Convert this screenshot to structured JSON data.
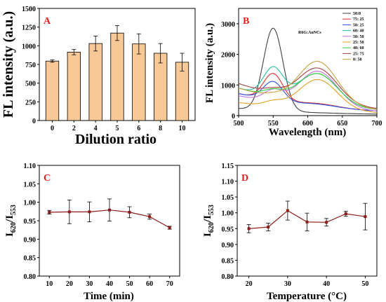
{
  "chart_data": [
    {
      "panel": "A",
      "type": "bar",
      "xlabel": "Dilution ratio",
      "ylabel": "FL intensity (a.u.)",
      "categories": [
        "0",
        "2",
        "4",
        "5",
        "6",
        "8",
        "10"
      ],
      "values": [
        795,
        915,
        1030,
        1170,
        1025,
        900,
        780
      ],
      "errors": [
        15,
        35,
        100,
        100,
        135,
        130,
        120
      ],
      "ylim": [
        0,
        1500
      ],
      "yticks": [
        "0",
        "250",
        "500",
        "750",
        "1000",
        "1250",
        "1500"
      ],
      "bar_color": "#f9c897"
    },
    {
      "panel": "B",
      "type": "line",
      "xlabel": "Wavelength (nm)",
      "ylabel": "FL intensity (a.u.)",
      "xlim": [
        500,
        700
      ],
      "ylim": [
        0,
        3500
      ],
      "xticks": [
        "500",
        "550",
        "600",
        "650",
        "700"
      ],
      "yticks": [
        "0",
        "1000",
        "2000",
        "3000"
      ],
      "legend_title": "R6G:AuNCs",
      "legend_position": "top-right",
      "series": [
        {
          "name": "50:0",
          "color": "#404040",
          "base": 230,
          "p550": 2700,
          "p615": 0
        },
        {
          "name": "75: 25",
          "color": "#e03030",
          "base": 720,
          "p550": 880,
          "p615": 100
        },
        {
          "name": "50: 25",
          "color": "#3050e0",
          "base": 720,
          "p550": 620,
          "p615": 80
        },
        {
          "name": "60: 40",
          "color": "#20c0a0",
          "base": 900,
          "p550": 920,
          "p615": 1000
        },
        {
          "name": "50: 50",
          "color": "#c070e0",
          "base": 650,
          "p550": 350,
          "p615": 1180
        },
        {
          "name": "25: 50",
          "color": "#e0a020",
          "base": 430,
          "p550": 150,
          "p615": 1000
        },
        {
          "name": "40: 60",
          "color": "#30d040",
          "base": 900,
          "p550": 200,
          "p615": 1000
        },
        {
          "name": "25: 75",
          "color": "#a04040",
          "base": 1050,
          "p550": 130,
          "p615": 1120
        },
        {
          "name": "0: 50",
          "color": "#c8a040",
          "base": 900,
          "p550": 60,
          "p615": 1400
        }
      ]
    },
    {
      "panel": "C",
      "type": "line",
      "xlabel": "Time (min)",
      "ylabel_main": "I",
      "ylabel_sub1": "620",
      "ylabel_mid": "/I",
      "ylabel_sub2": "553",
      "x": [
        10,
        20,
        30,
        40,
        50,
        60,
        70
      ],
      "values": [
        0.973,
        0.974,
        0.974,
        0.979,
        0.973,
        0.961,
        0.931
      ],
      "errors": [
        0.005,
        0.032,
        0.027,
        0.03,
        0.015,
        0.007,
        0.004
      ],
      "xlim": [
        5,
        75
      ],
      "ylim": [
        0.8,
        1.1
      ],
      "xticks": [
        "10",
        "20",
        "30",
        "40",
        "50",
        "60",
        "70"
      ],
      "yticks": [
        "0.80",
        "0.85",
        "0.90",
        "0.95",
        "1.00",
        "1.05",
        "1.10"
      ],
      "line_color": "#8b1a1a"
    },
    {
      "panel": "D",
      "type": "line",
      "xlabel": "Temperature (°C)",
      "ylabel_main": "I",
      "ylabel_sub1": "620",
      "ylabel_mid": "/I",
      "ylabel_sub2": "553",
      "x": [
        20,
        25,
        30,
        35,
        40,
        45,
        50
      ],
      "values": [
        0.95,
        0.955,
        1.007,
        0.971,
        0.97,
        0.997,
        0.988
      ],
      "errors": [
        0.013,
        0.012,
        0.03,
        0.028,
        0.012,
        0.008,
        0.042
      ],
      "xlim": [
        17,
        53
      ],
      "ylim": [
        0.8,
        1.15
      ],
      "xticks": [
        "20",
        "30",
        "40",
        "50"
      ],
      "yticks": [
        "0.80",
        "0.85",
        "0.90",
        "0.95",
        "1.00",
        "1.05",
        "1.10",
        "1.15"
      ],
      "line_color": "#8b1a1a"
    }
  ]
}
